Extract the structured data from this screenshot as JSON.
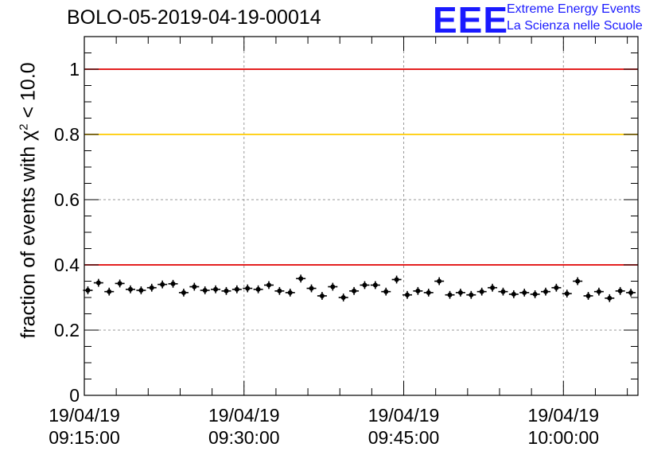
{
  "header": {
    "title": "BOLO-05-2019-04-19-00014",
    "logo_text": "EEE",
    "logo_line1": "Extreme Energy Events",
    "logo_line2": "La Scienza nelle Scuole"
  },
  "colors": {
    "threshold_red": "#e00000",
    "threshold_yellow": "#ffcc00",
    "logo_blue": "#1a1aff",
    "markers": "#000000"
  },
  "chart_data": {
    "type": "scatter",
    "title": "BOLO-05-2019-04-19-00014",
    "ylabel_main": "fraction of events with χ",
    "ylabel_sup": "2",
    "ylabel_tail": " < 10.0",
    "xlabel": "",
    "ylim": [
      0,
      1.1
    ],
    "xlim_minutes_after_0915": [
      0,
      52
    ],
    "grid": true,
    "x_ticks": [
      {
        "date": "19/04/19",
        "time": "09:15:00",
        "minute": 0
      },
      {
        "date": "19/04/19",
        "time": "09:30:00",
        "minute": 15
      },
      {
        "date": "19/04/19",
        "time": "09:45:00",
        "minute": 30
      },
      {
        "date": "19/04/19",
        "time": "10:00:00",
        "minute": 45
      }
    ],
    "y_ticks": [
      "0",
      "0.2",
      "0.4",
      "0.6",
      "0.8",
      "1"
    ],
    "y_tick_values": [
      0,
      0.2,
      0.4,
      0.6,
      0.8,
      1.0
    ],
    "reference_lines": [
      {
        "y": 1.0,
        "color": "#e00000"
      },
      {
        "y": 0.8,
        "color": "#ffcc00"
      },
      {
        "y": 0.4,
        "color": "#e00000"
      }
    ],
    "series": [
      {
        "times": [
          "09:15:20",
          "09:16:20",
          "09:17:20",
          "09:18:20",
          "09:19:20",
          "09:20:20",
          "09:21:20",
          "09:22:20",
          "09:23:20",
          "09:24:20",
          "09:25:20",
          "09:26:20",
          "09:27:20",
          "09:28:20",
          "09:29:20",
          "09:30:20",
          "09:31:20",
          "09:32:20",
          "09:33:20",
          "09:34:20",
          "09:35:20",
          "09:36:20",
          "09:37:20",
          "09:38:20",
          "09:39:20",
          "09:40:20",
          "09:41:20",
          "09:42:20",
          "09:43:20",
          "09:44:20",
          "09:45:20",
          "09:46:20",
          "09:47:20",
          "09:48:20",
          "09:49:20",
          "09:50:20",
          "09:51:20",
          "09:52:20",
          "09:53:20",
          "09:54:20",
          "09:55:20",
          "09:56:20",
          "09:57:20",
          "09:58:20",
          "09:59:20",
          "10:00:20",
          "10:01:20",
          "10:02:20",
          "10:03:20",
          "10:04:20",
          "10:05:20",
          "10:06:20"
        ],
        "values": [
          0.322,
          0.345,
          0.318,
          0.343,
          0.325,
          0.322,
          0.33,
          0.34,
          0.342,
          0.315,
          0.333,
          0.322,
          0.325,
          0.32,
          0.325,
          0.328,
          0.325,
          0.338,
          0.32,
          0.315,
          0.358,
          0.328,
          0.305,
          0.333,
          0.3,
          0.32,
          0.338,
          0.338,
          0.318,
          0.355,
          0.308,
          0.32,
          0.315,
          0.35,
          0.308,
          0.315,
          0.308,
          0.318,
          0.33,
          0.318,
          0.31,
          0.315,
          0.31,
          0.318,
          0.33,
          0.312,
          0.35,
          0.305,
          0.318,
          0.298,
          0.32,
          0.315
        ],
        "error": 0.012
      }
    ]
  }
}
